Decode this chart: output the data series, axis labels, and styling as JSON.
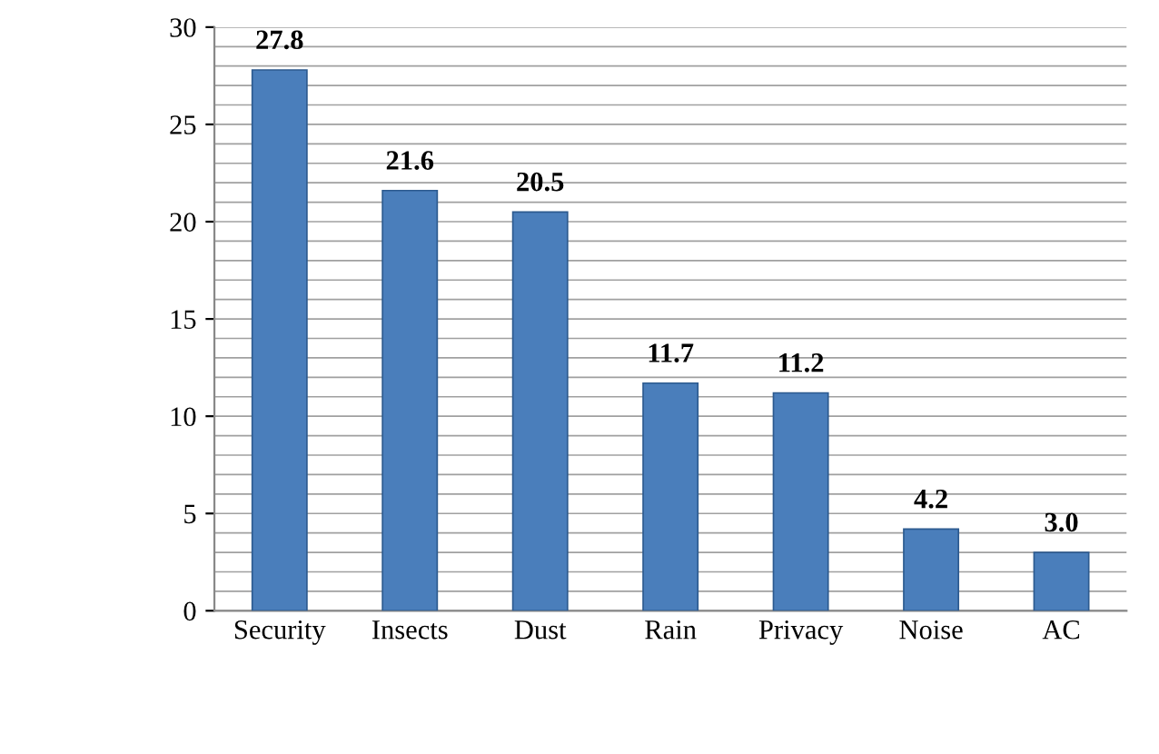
{
  "chart_data": {
    "type": "bar",
    "categories": [
      "Security",
      "Insects",
      "Dust",
      "Rain",
      "Privacy",
      "Noise",
      "AC"
    ],
    "values": [
      27.8,
      21.6,
      20.5,
      11.7,
      11.2,
      4.2,
      3.0
    ],
    "value_labels": [
      "27.8",
      "21.6",
      "20.5",
      "11.7",
      "11.2",
      "4.2",
      "3.0"
    ],
    "color": "#4a7ebb",
    "ylim": [
      0,
      30
    ],
    "yticks": [
      0,
      {
        "value": 1,
        "label": null
      },
      {
        "value": 2,
        "label": null
      },
      {
        "value": 3,
        "label": null
      },
      {
        "value": 4,
        "label": null
      },
      5,
      {
        "value": 6,
        "label": null
      },
      {
        "value": 7,
        "label": null
      },
      {
        "value": 8,
        "label": null
      },
      {
        "value": 9,
        "label": null
      },
      10,
      {
        "value": 11,
        "label": null
      },
      {
        "value": 12,
        "label": null
      },
      {
        "value": 13,
        "label": null
      },
      {
        "value": 14,
        "label": null
      },
      15,
      {
        "value": 16,
        "label": null
      },
      {
        "value": 17,
        "label": null
      },
      {
        "value": 18,
        "label": null
      },
      {
        "value": 19,
        "label": null
      },
      20,
      {
        "value": 21,
        "label": null
      },
      {
        "value": 22,
        "label": null
      },
      {
        "value": 23,
        "label": null
      },
      {
        "value": 24,
        "label": null
      },
      25,
      {
        "value": 26,
        "label": null
      },
      {
        "value": 27,
        "label": null
      },
      {
        "value": 28,
        "label": null
      },
      {
        "value": 29,
        "label": null
      },
      30
    ],
    "grid": "y",
    "legend": false
  }
}
